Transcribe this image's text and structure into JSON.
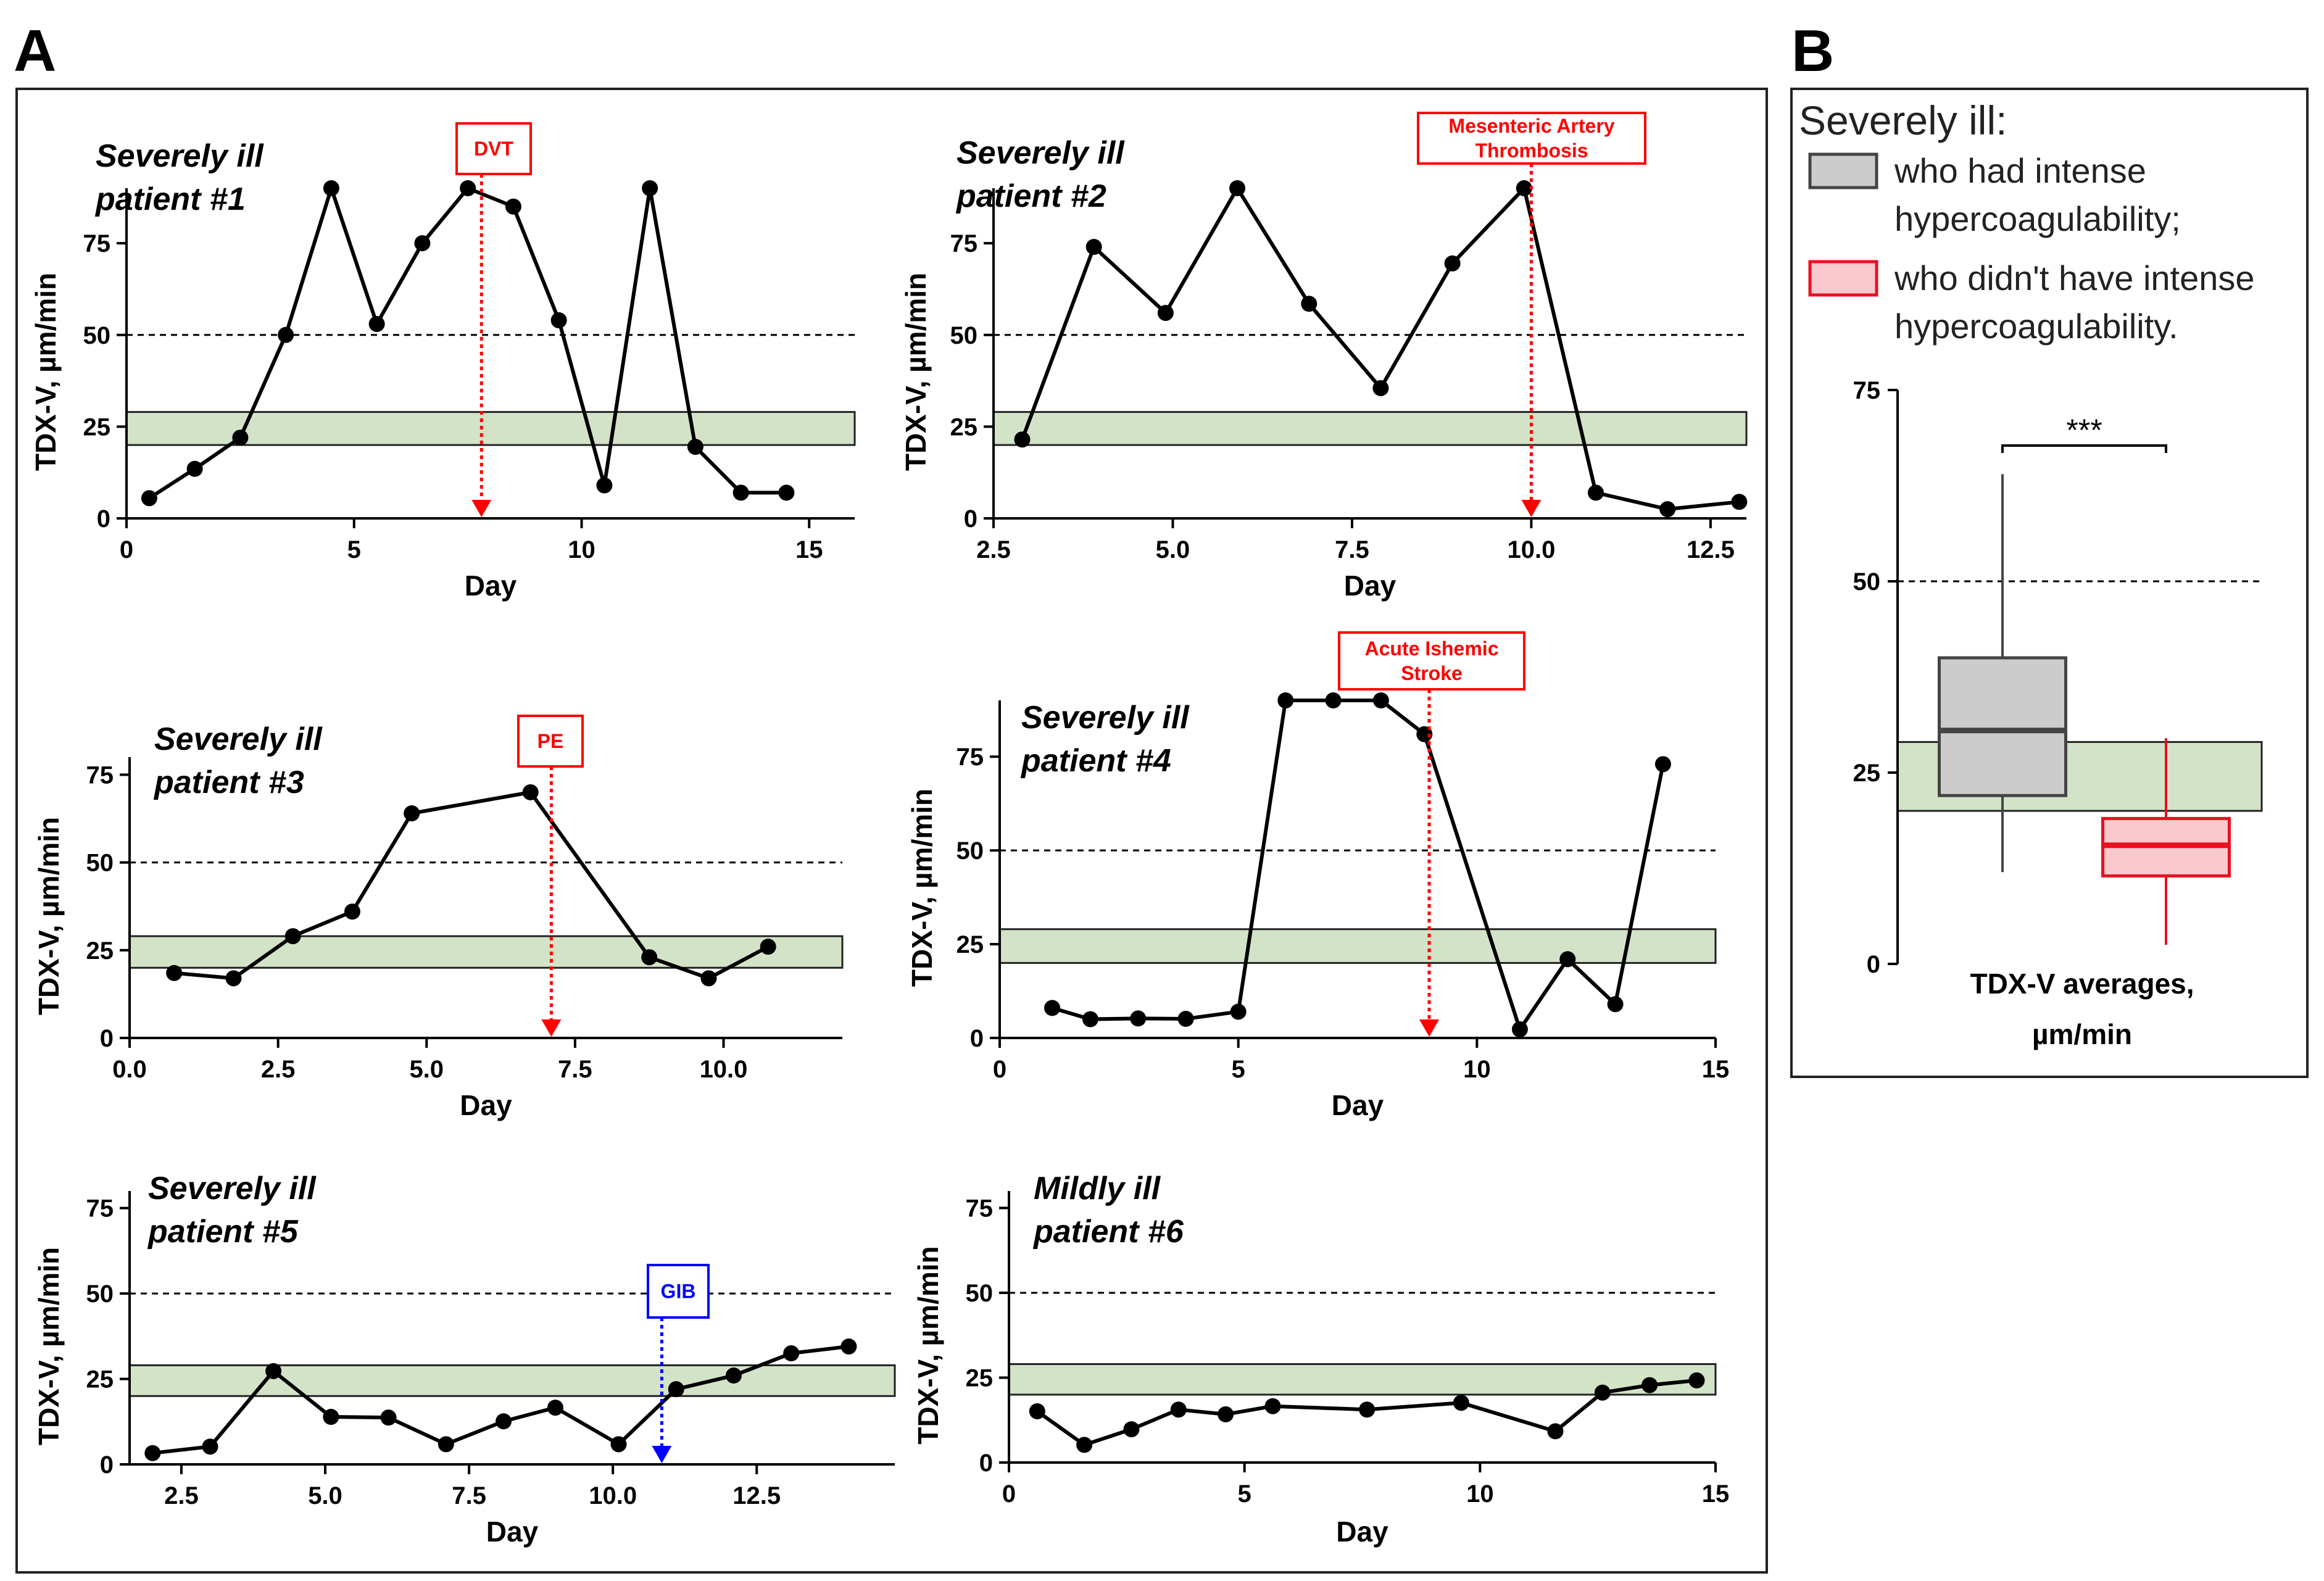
{
  "panel_a_label": "A",
  "panel_b_label": "B",
  "chart_data": [
    {
      "id": "p1",
      "type": "line",
      "title": [
        "Severely ill",
        "patient #1"
      ],
      "xlabel": "Day",
      "ylabel": "TDX-V, µm/min",
      "xlim": [
        0,
        16
      ],
      "ylim": [
        0,
        90
      ],
      "xticks": [
        0,
        5,
        10,
        15
      ],
      "xtick_labels": [
        "0",
        "5",
        "10",
        "15"
      ],
      "yticks": [
        0,
        25,
        50,
        75
      ],
      "ytick_labels": [
        "0",
        "25",
        "50",
        "75"
      ],
      "ref_band": [
        20,
        29
      ],
      "ref_line": 50,
      "x": [
        0.5,
        1.5,
        2.5,
        3.5,
        4.5,
        5.5,
        6.5,
        7.5,
        8.5,
        9.5,
        10.5,
        11.5,
        12.5,
        13.5,
        14.5
      ],
      "y": [
        5.5,
        13.5,
        22,
        50,
        90,
        53,
        75,
        90,
        85,
        54,
        9,
        90,
        19.5,
        7,
        7
      ],
      "annotation": {
        "label": [
          "DVT"
        ],
        "x": 7.8,
        "color": "#ff0000"
      }
    },
    {
      "id": "p2",
      "type": "line",
      "title": [
        "Severely ill",
        "patient #2"
      ],
      "xlabel": "Day",
      "ylabel": "TDX-V, µm/min",
      "xlim": [
        2.5,
        13
      ],
      "ylim": [
        0,
        90
      ],
      "xticks": [
        2.5,
        5.0,
        7.5,
        10.0,
        12.5
      ],
      "xtick_labels": [
        "2.5",
        "5.0",
        "7.5",
        "10.0",
        "12.5"
      ],
      "yticks": [
        0,
        25,
        50,
        75
      ],
      "ytick_labels": [
        "0",
        "25",
        "50",
        "75"
      ],
      "ref_band": [
        20,
        29
      ],
      "ref_line": 50,
      "x": [
        2.9,
        3.9,
        4.9,
        5.9,
        6.9,
        7.9,
        8.9,
        9.9,
        10.9,
        11.9,
        12.9
      ],
      "y": [
        21.5,
        74,
        56,
        90,
        58.5,
        35.5,
        69.5,
        90,
        7,
        2.5,
        4.5
      ],
      "annotation": {
        "label": [
          "Mesenteric Artery",
          "Thrombosis"
        ],
        "x": 10.0,
        "color": "#ff0000"
      }
    },
    {
      "id": "p3",
      "type": "line",
      "title": [
        "Severely ill",
        "patient #3"
      ],
      "xlabel": "Day",
      "ylabel": "TDX-V, µm/min",
      "xlim": [
        0,
        12
      ],
      "ylim": [
        0,
        80
      ],
      "xticks": [
        0.0,
        2.5,
        5.0,
        7.5,
        10.0
      ],
      "xtick_labels": [
        "0.0",
        "2.5",
        "5.0",
        "7.5",
        "10.0"
      ],
      "yticks": [
        0,
        25,
        50,
        75
      ],
      "ytick_labels": [
        "0",
        "25",
        "50",
        "75"
      ],
      "ref_band": [
        20,
        29
      ],
      "ref_line": 50,
      "x": [
        0.75,
        1.75,
        2.75,
        3.75,
        4.75,
        6.75,
        8.75,
        9.75,
        10.75
      ],
      "y": [
        18.5,
        17,
        29,
        36,
        64,
        70,
        23,
        17,
        26
      ],
      "annotation": {
        "label": [
          "PE"
        ],
        "x": 7.1,
        "color": "#ff0000"
      }
    },
    {
      "id": "p4",
      "type": "line",
      "title": [
        "Severely ill",
        "patient #4"
      ],
      "xlabel": "Day",
      "ylabel": "TDX-V, µm/min",
      "xlim": [
        0,
        15
      ],
      "ylim": [
        0,
        90
      ],
      "xticks": [
        0,
        5,
        10,
        15
      ],
      "xtick_labels": [
        "0",
        "5",
        "10",
        "15"
      ],
      "yticks": [
        0,
        25,
        50,
        75
      ],
      "ytick_labels": [
        "0",
        "25",
        "50",
        "75"
      ],
      "ref_band": [
        20,
        29
      ],
      "ref_line": 50,
      "x": [
        1.1,
        1.9,
        2.9,
        3.9,
        5.0,
        5.99,
        6.99,
        7.99,
        8.9,
        10.9,
        11.9,
        12.9,
        13.9
      ],
      "y": [
        8,
        5,
        5.2,
        5.1,
        7,
        90,
        90,
        90,
        81,
        2.3,
        21,
        9,
        73
      ],
      "annotation": {
        "label": [
          "Acute Ishemic",
          "Stroke"
        ],
        "x": 9.0,
        "color": "#ff0000"
      }
    },
    {
      "id": "p5",
      "type": "line",
      "title": [
        "Severely ill",
        "patient #5"
      ],
      "xlabel": "Day",
      "ylabel": "TDX-V, µm/min",
      "xlim": [
        1.6,
        14.9
      ],
      "ylim": [
        0,
        80
      ],
      "xticks": [
        2.5,
        5.0,
        7.5,
        10.0,
        12.5
      ],
      "xtick_labels": [
        "2.5",
        "5.0",
        "7.5",
        "10.0",
        "12.5"
      ],
      "yticks": [
        0,
        25,
        50,
        75
      ],
      "ytick_labels": [
        "0",
        "25",
        "50",
        "75"
      ],
      "ref_band": [
        20,
        29
      ],
      "ref_line": 50,
      "x": [
        2.0,
        3.0,
        4.1,
        5.1,
        6.1,
        7.1,
        8.1,
        9.0,
        10.1,
        11.1,
        12.1,
        13.1,
        14.1
      ],
      "y": [
        3.3,
        5.2,
        27.3,
        13.9,
        13.7,
        5.9,
        12.6,
        16.6,
        5.9,
        22,
        26,
        32.5,
        34.5
      ],
      "annotation": {
        "label": [
          "GIB"
        ],
        "x": 10.85,
        "color": "#0000ff"
      }
    },
    {
      "id": "p6",
      "type": "line",
      "title": [
        "Mildly ill",
        "patient #6"
      ],
      "xlabel": "Day",
      "ylabel": "TDX-V, µm/min",
      "xlim": [
        0,
        15
      ],
      "ylim": [
        0,
        80
      ],
      "xticks": [
        0,
        5,
        10,
        15
      ],
      "xtick_labels": [
        "0",
        "5",
        "10",
        "15"
      ],
      "yticks": [
        0,
        25,
        50,
        75
      ],
      "ytick_labels": [
        "0",
        "25",
        "50",
        "75"
      ],
      "ref_band": [
        20,
        29
      ],
      "ref_line": 50,
      "x": [
        0.6,
        1.6,
        2.6,
        3.6,
        4.6,
        5.6,
        7.6,
        9.6,
        11.6,
        12.6,
        13.6,
        14.6
      ],
      "y": [
        15.1,
        5.2,
        9.8,
        15.6,
        14.2,
        16.6,
        15.6,
        17.6,
        9.2,
        20.6,
        22.8,
        24.2
      ],
      "annotation": null
    },
    {
      "id": "pB",
      "type": "box",
      "xlabel": [
        "TDX-V averages,",
        "µm/min"
      ],
      "ylim": [
        0,
        75
      ],
      "yticks": [
        0,
        25,
        50,
        75
      ],
      "ytick_labels": [
        "0",
        "25",
        "50",
        "75"
      ],
      "ref_band": [
        20,
        29
      ],
      "ref_line": 50,
      "significance": "***",
      "legend_title": "Severely ill:",
      "boxes": [
        {
          "name": [
            "who had intense",
            "hypercoagulability;"
          ],
          "min": 12,
          "q1": 22,
          "median": 30.5,
          "q3": 40,
          "max": 64,
          "fill": "#cccccc",
          "stroke": "#444444"
        },
        {
          "name": [
            "who didn't have intense",
            "hypercoagulability."
          ],
          "min": 2.5,
          "q1": 11.5,
          "median": 15.5,
          "q3": 19,
          "max": 29.5,
          "fill": "#f8c8cc",
          "stroke": "#e8111f"
        }
      ]
    }
  ]
}
